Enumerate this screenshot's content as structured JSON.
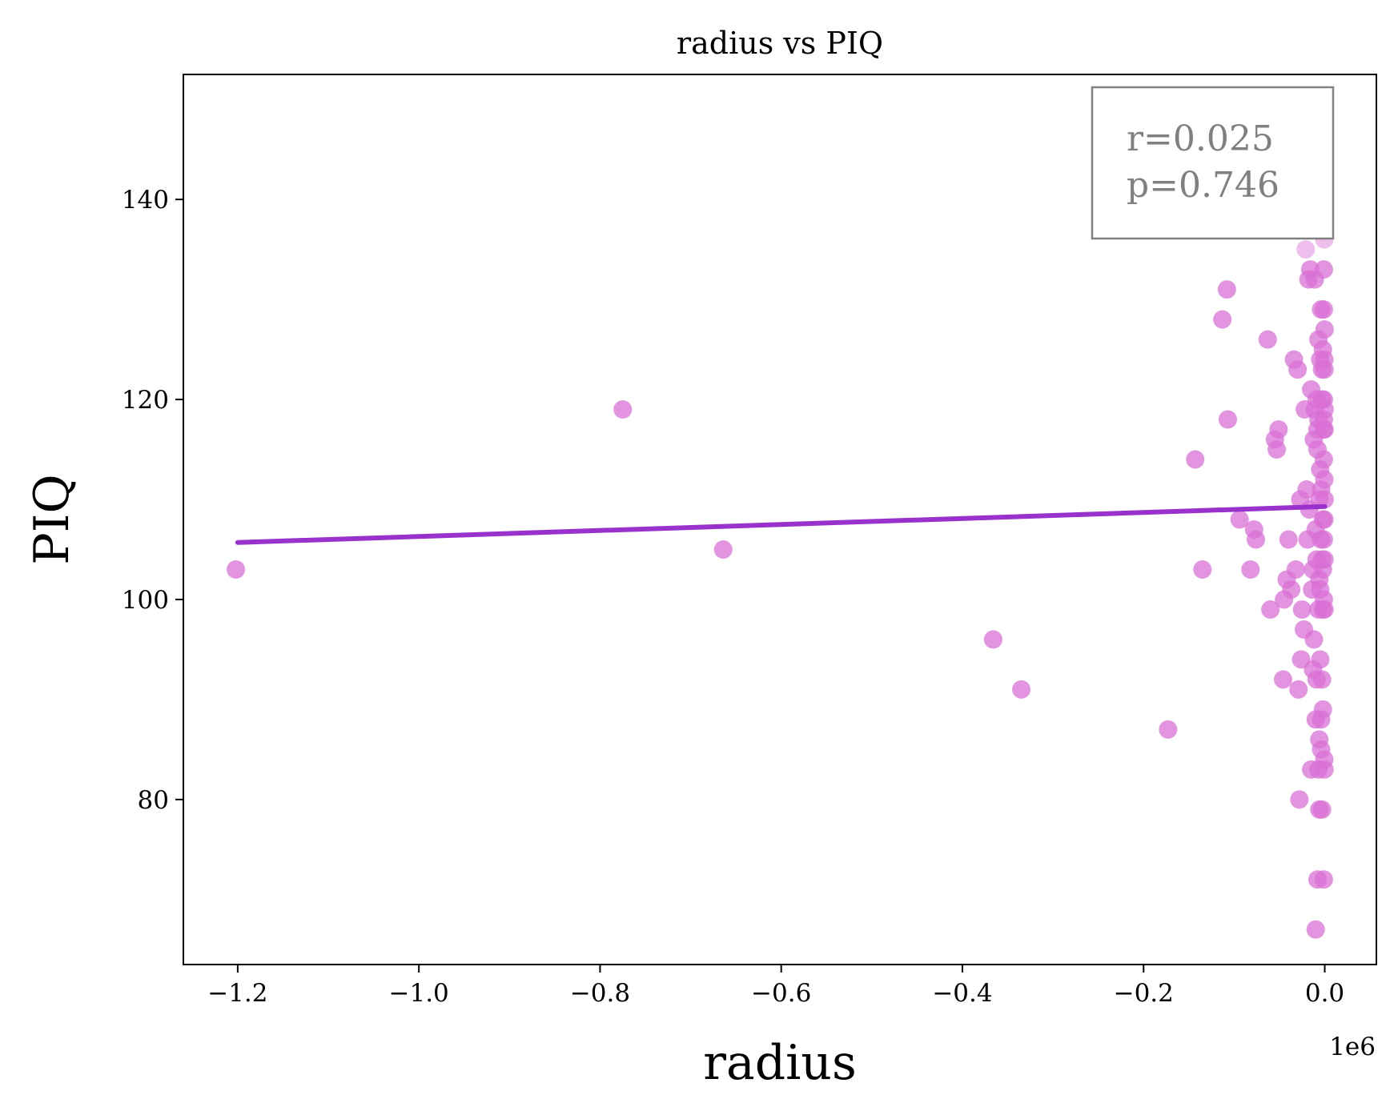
{
  "chart_data": {
    "type": "scatter",
    "title": "radius vs PIQ",
    "xlabel": "radius",
    "ylabel": "PIQ",
    "x_offset_label": "1e6",
    "xlim": [
      -1.26,
      0.057
    ],
    "ylim": [
      63.5,
      152.5
    ],
    "x_ticks": [
      -1.2,
      -1.0,
      -0.8,
      -0.6,
      -0.4,
      -0.2,
      0.0
    ],
    "x_tick_labels": [
      "−1.2",
      "−1.0",
      "−0.8",
      "−0.6",
      "−0.4",
      "−0.2",
      "0.0"
    ],
    "y_ticks": [
      80,
      100,
      120,
      140
    ],
    "y_tick_labels": [
      "80",
      "100",
      "120",
      "140"
    ],
    "grid": false,
    "annotation": {
      "lines": [
        "r=0.025",
        "p=0.746"
      ],
      "placement": "top-right"
    },
    "regression_line": {
      "x": [
        -1.2,
        0.0
      ],
      "y": [
        105.7,
        109.3
      ]
    },
    "colors": {
      "points": "#da70d6",
      "line": "#9932cc",
      "annotation": "#808080"
    },
    "points": [
      [
        -1.202,
        103
      ],
      [
        -0.775,
        119
      ],
      [
        -0.664,
        105
      ],
      [
        -0.366,
        96
      ],
      [
        -0.335,
        91
      ],
      [
        -0.173,
        87
      ],
      [
        -0.143,
        114
      ],
      [
        -0.135,
        103
      ],
      [
        -0.131,
        149
      ],
      [
        -0.113,
        128
      ],
      [
        -0.108,
        131
      ],
      [
        -0.107,
        118
      ],
      [
        -0.094,
        108
      ],
      [
        -0.082,
        103
      ],
      [
        -0.078,
        107
      ],
      [
        -0.076,
        106
      ],
      [
        -0.063,
        126
      ],
      [
        -0.06,
        99
      ],
      [
        -0.055,
        116
      ],
      [
        -0.053,
        115
      ],
      [
        -0.051,
        117
      ],
      [
        -0.049,
        137
      ],
      [
        -0.046,
        92
      ],
      [
        -0.045,
        100
      ],
      [
        -0.042,
        102
      ],
      [
        -0.04,
        106
      ],
      [
        -0.037,
        101
      ],
      [
        -0.034,
        124
      ],
      [
        -0.032,
        103
      ],
      [
        -0.03,
        123
      ],
      [
        -0.029,
        91
      ],
      [
        -0.028,
        80
      ],
      [
        -0.027,
        110
      ],
      [
        -0.026,
        94
      ],
      [
        -0.025,
        99
      ],
      [
        -0.023,
        97
      ],
      [
        -0.022,
        119
      ],
      [
        -0.021,
        135
      ],
      [
        -0.02,
        111
      ],
      [
        -0.019,
        106
      ],
      [
        -0.018,
        132
      ],
      [
        -0.017,
        109
      ],
      [
        -0.016,
        133
      ],
      [
        -0.016,
        145
      ],
      [
        -0.015,
        121
      ],
      [
        -0.015,
        83
      ],
      [
        -0.014,
        101
      ],
      [
        -0.013,
        103
      ],
      [
        -0.013,
        93
      ],
      [
        -0.012,
        116
      ],
      [
        -0.012,
        96
      ],
      [
        -0.011,
        132
      ],
      [
        -0.011,
        119
      ],
      [
        -0.01,
        88
      ],
      [
        -0.01,
        107
      ],
      [
        -0.01,
        67
      ],
      [
        -0.009,
        104
      ],
      [
        -0.009,
        120
      ],
      [
        -0.009,
        92
      ],
      [
        -0.008,
        115
      ],
      [
        -0.008,
        72
      ],
      [
        -0.008,
        117
      ],
      [
        -0.007,
        118
      ],
      [
        -0.007,
        126
      ],
      [
        -0.007,
        83
      ],
      [
        -0.007,
        99
      ],
      [
        -0.006,
        102
      ],
      [
        -0.006,
        86
      ],
      [
        -0.006,
        110
      ],
      [
        -0.006,
        79
      ],
      [
        -0.005,
        113
      ],
      [
        -0.005,
        94
      ],
      [
        -0.005,
        101
      ],
      [
        -0.005,
        124
      ],
      [
        -0.004,
        129
      ],
      [
        -0.004,
        111
      ],
      [
        -0.004,
        85
      ],
      [
        -0.004,
        106
      ],
      [
        -0.004,
        88
      ],
      [
        -0.003,
        120
      ],
      [
        -0.003,
        123
      ],
      [
        -0.003,
        92
      ],
      [
        -0.003,
        104
      ],
      [
        -0.003,
        79
      ],
      [
        -0.002,
        125
      ],
      [
        -0.002,
        147
      ],
      [
        -0.002,
        108
      ],
      [
        -0.002,
        99
      ],
      [
        -0.002,
        89
      ],
      [
        -0.002,
        103
      ],
      [
        -0.001,
        129
      ],
      [
        -0.001,
        117
      ],
      [
        -0.001,
        114
      ],
      [
        -0.001,
        133
      ],
      [
        -0.001,
        72
      ],
      [
        -0.001,
        106
      ],
      [
        -0.001,
        120
      ],
      [
        -0.001,
        100
      ],
      [
        -0.001,
        118
      ],
      [
        -0.001,
        146
      ],
      [
        -0.0005,
        136
      ],
      [
        -0.0005,
        84
      ],
      [
        -0.0005,
        112
      ],
      [
        -0.0005,
        108
      ],
      [
        -0.0005,
        124
      ],
      [
        -0.0003,
        123
      ],
      [
        -0.0003,
        117
      ],
      [
        -0.0003,
        99
      ],
      [
        -0.0003,
        104
      ],
      [
        -0.0003,
        83
      ],
      [
        -0.0002,
        127
      ],
      [
        -0.0002,
        110
      ],
      [
        -0.0002,
        119
      ]
    ]
  }
}
